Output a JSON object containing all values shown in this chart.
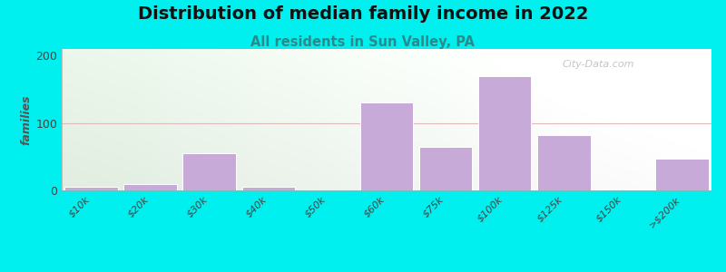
{
  "title": "Distribution of median family income in 2022",
  "subtitle": "All residents in Sun Valley, PA",
  "categories": [
    "$10k",
    "$20k",
    "$30k",
    "$40k",
    "$50k",
    "$60k",
    "$75k",
    "$100k",
    "$125k",
    "$150k",
    ">$200k"
  ],
  "values": [
    5,
    10,
    55,
    5,
    0,
    130,
    65,
    170,
    82,
    0,
    47
  ],
  "bar_color": "#c8aad8",
  "bar_edge_color": "#ffffff",
  "ylabel": "families",
  "ylim": [
    0,
    210
  ],
  "yticks": [
    0,
    100,
    200
  ],
  "background_outer": "#00efef",
  "watermark": "City-Data.com",
  "title_fontsize": 14,
  "subtitle_fontsize": 10.5,
  "subtitle_color": "#2a8a8a",
  "hline_color": "#ddbbbb",
  "hline_y": 100
}
